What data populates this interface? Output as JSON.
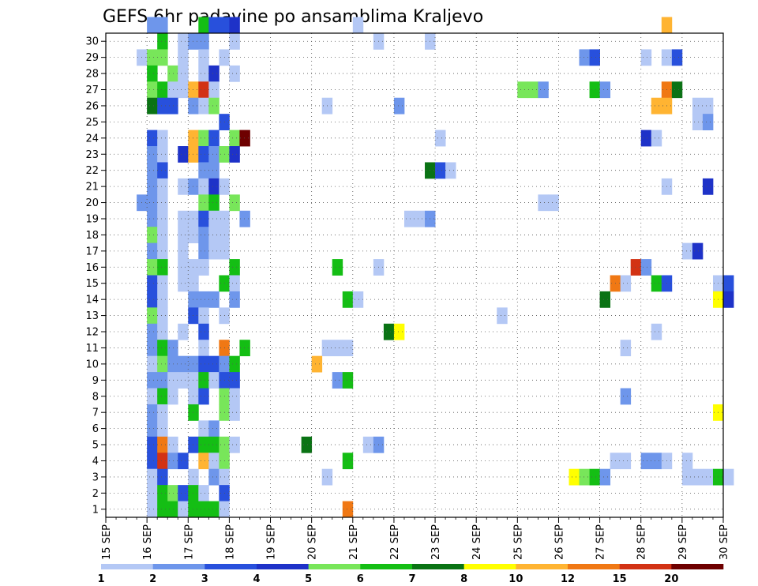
{
  "chart_data": {
    "type": "heatmap",
    "title": "GEFS 6hr padavine po ansamblima Kraljevo",
    "xlabel": "",
    "ylabel": "",
    "x_tick_labels": [
      "15 SEP",
      "16 SEP",
      "17 SEP",
      "18 SEP",
      "19 SEP",
      "20 SEP",
      "21 SEP",
      "22 SEP",
      "23 SEP",
      "24 SEP",
      "25 SEP",
      "26 SEP",
      "27 SEP",
      "28 SEP",
      "29 SEP",
      "30 SEP"
    ],
    "y_tick_labels": [
      "1",
      "2",
      "3",
      "4",
      "5",
      "6",
      "7",
      "8",
      "9",
      "10",
      "11",
      "12",
      "13",
      "14",
      "15",
      "16",
      "17",
      "18",
      "19",
      "20",
      "21",
      "22",
      "23",
      "24",
      "25",
      "26",
      "27",
      "28",
      "29",
      "30"
    ],
    "ylim": [
      0,
      30
    ],
    "x_steps_per_day": 4,
    "grid": true,
    "legend": {
      "placement": "bottom",
      "labels": [
        "1",
        "2",
        "3",
        "4",
        "5",
        "6",
        "7",
        "8",
        "10",
        "12",
        "15",
        "20"
      ],
      "colors": [
        "#b4c8f5",
        "#6e96eb",
        "#2850dc",
        "#1e32c8",
        "#78e65a",
        "#14be14",
        "#0a7314",
        "#ffff00",
        "#ffb432",
        "#f07814",
        "#d23214",
        "#6e0000"
      ]
    },
    "cells": [
      {
        "m": 30,
        "t": 4,
        "c": 1
      },
      {
        "m": 30,
        "t": 5,
        "c": 1
      },
      {
        "m": 30,
        "t": 9,
        "c": 5
      },
      {
        "m": 30,
        "t": 10,
        "c": 2
      },
      {
        "m": 30,
        "t": 11,
        "c": 2
      },
      {
        "m": 30,
        "t": 12,
        "c": 3
      },
      {
        "m": 30,
        "t": 24,
        "c": 0
      },
      {
        "m": 30,
        "t": 54,
        "c": 8
      },
      {
        "m": 29,
        "t": 5,
        "c": 5
      },
      {
        "m": 29,
        "t": 7,
        "c": 0
      },
      {
        "m": 29,
        "t": 8,
        "c": 1
      },
      {
        "m": 29,
        "t": 9,
        "c": 1
      },
      {
        "m": 29,
        "t": 12,
        "c": 0
      },
      {
        "m": 29,
        "t": 26,
        "c": 0
      },
      {
        "m": 29,
        "t": 31,
        "c": 0
      },
      {
        "m": 28,
        "t": 3,
        "c": 0
      },
      {
        "m": 28,
        "t": 4,
        "c": 4
      },
      {
        "m": 28,
        "t": 5,
        "c": 4
      },
      {
        "m": 28,
        "t": 7,
        "c": 0
      },
      {
        "m": 28,
        "t": 9,
        "c": 0
      },
      {
        "m": 28,
        "t": 11,
        "c": 0
      },
      {
        "m": 28,
        "t": 46,
        "c": 1
      },
      {
        "m": 28,
        "t": 47,
        "c": 2
      },
      {
        "m": 28,
        "t": 52,
        "c": 0
      },
      {
        "m": 28,
        "t": 54,
        "c": 0
      },
      {
        "m": 28,
        "t": 55,
        "c": 2
      },
      {
        "m": 27,
        "t": 4,
        "c": 5
      },
      {
        "m": 27,
        "t": 6,
        "c": 4
      },
      {
        "m": 27,
        "t": 7,
        "c": 0
      },
      {
        "m": 27,
        "t": 9,
        "c": 0
      },
      {
        "m": 27,
        "t": 10,
        "c": 3
      },
      {
        "m": 27,
        "t": 12,
        "c": 0
      },
      {
        "m": 26,
        "t": 4,
        "c": 4
      },
      {
        "m": 26,
        "t": 5,
        "c": 5
      },
      {
        "m": 26,
        "t": 6,
        "c": 0
      },
      {
        "m": 26,
        "t": 7,
        "c": 0
      },
      {
        "m": 26,
        "t": 8,
        "c": 8
      },
      {
        "m": 26,
        "t": 9,
        "c": 10
      },
      {
        "m": 26,
        "t": 10,
        "c": 0
      },
      {
        "m": 26,
        "t": 40,
        "c": 4
      },
      {
        "m": 26,
        "t": 41,
        "c": 4
      },
      {
        "m": 26,
        "t": 42,
        "c": 1
      },
      {
        "m": 26,
        "t": 47,
        "c": 5
      },
      {
        "m": 26,
        "t": 48,
        "c": 1
      },
      {
        "m": 26,
        "t": 54,
        "c": 9
      },
      {
        "m": 26,
        "t": 55,
        "c": 6
      },
      {
        "m": 25,
        "t": 4,
        "c": 6
      },
      {
        "m": 25,
        "t": 5,
        "c": 2
      },
      {
        "m": 25,
        "t": 6,
        "c": 2
      },
      {
        "m": 25,
        "t": 8,
        "c": 1
      },
      {
        "m": 25,
        "t": 9,
        "c": 0
      },
      {
        "m": 25,
        "t": 10,
        "c": 4
      },
      {
        "m": 25,
        "t": 21,
        "c": 0
      },
      {
        "m": 25,
        "t": 28,
        "c": 1
      },
      {
        "m": 25,
        "t": 53,
        "c": 8
      },
      {
        "m": 25,
        "t": 54,
        "c": 8
      },
      {
        "m": 25,
        "t": 57,
        "c": 0
      },
      {
        "m": 25,
        "t": 58,
        "c": 0
      },
      {
        "m": 24,
        "t": 11,
        "c": 2
      },
      {
        "m": 24,
        "t": 57,
        "c": 0
      },
      {
        "m": 24,
        "t": 58,
        "c": 1
      },
      {
        "m": 23,
        "t": 4,
        "c": 2
      },
      {
        "m": 23,
        "t": 5,
        "c": 0
      },
      {
        "m": 23,
        "t": 8,
        "c": 8
      },
      {
        "m": 23,
        "t": 9,
        "c": 4
      },
      {
        "m": 23,
        "t": 10,
        "c": 2
      },
      {
        "m": 23,
        "t": 12,
        "c": 4
      },
      {
        "m": 23,
        "t": 13,
        "c": 11
      },
      {
        "m": 23,
        "t": 32,
        "c": 0
      },
      {
        "m": 23,
        "t": 52,
        "c": 3
      },
      {
        "m": 23,
        "t": 53,
        "c": 0
      },
      {
        "m": 22,
        "t": 4,
        "c": 1
      },
      {
        "m": 22,
        "t": 5,
        "c": 0
      },
      {
        "m": 22,
        "t": 7,
        "c": 3
      },
      {
        "m": 22,
        "t": 8,
        "c": 8
      },
      {
        "m": 22,
        "t": 9,
        "c": 2
      },
      {
        "m": 22,
        "t": 10,
        "c": 1
      },
      {
        "m": 22,
        "t": 11,
        "c": 4
      },
      {
        "m": 22,
        "t": 12,
        "c": 3
      },
      {
        "m": 21,
        "t": 4,
        "c": 1
      },
      {
        "m": 21,
        "t": 5,
        "c": 2
      },
      {
        "m": 21,
        "t": 9,
        "c": 1
      },
      {
        "m": 21,
        "t": 10,
        "c": 1
      },
      {
        "m": 21,
        "t": 31,
        "c": 6
      },
      {
        "m": 21,
        "t": 32,
        "c": 2
      },
      {
        "m": 21,
        "t": 33,
        "c": 0
      },
      {
        "m": 20,
        "t": 4,
        "c": 1
      },
      {
        "m": 20,
        "t": 5,
        "c": 0
      },
      {
        "m": 20,
        "t": 7,
        "c": 0
      },
      {
        "m": 20,
        "t": 8,
        "c": 1
      },
      {
        "m": 20,
        "t": 9,
        "c": 0
      },
      {
        "m": 20,
        "t": 10,
        "c": 3
      },
      {
        "m": 20,
        "t": 11,
        "c": 0
      },
      {
        "m": 20,
        "t": 54,
        "c": 0
      },
      {
        "m": 20,
        "t": 58,
        "c": 3
      },
      {
        "m": 19,
        "t": 3,
        "c": 1
      },
      {
        "m": 19,
        "t": 4,
        "c": 1
      },
      {
        "m": 19,
        "t": 5,
        "c": 0
      },
      {
        "m": 19,
        "t": 9,
        "c": 4
      },
      {
        "m": 19,
        "t": 10,
        "c": 5
      },
      {
        "m": 19,
        "t": 12,
        "c": 4
      },
      {
        "m": 19,
        "t": 42,
        "c": 0
      },
      {
        "m": 19,
        "t": 43,
        "c": 0
      },
      {
        "m": 18,
        "t": 4,
        "c": 1
      },
      {
        "m": 18,
        "t": 5,
        "c": 0
      },
      {
        "m": 18,
        "t": 7,
        "c": 0
      },
      {
        "m": 18,
        "t": 8,
        "c": 0
      },
      {
        "m": 18,
        "t": 9,
        "c": 2
      },
      {
        "m": 18,
        "t": 10,
        "c": 0
      },
      {
        "m": 18,
        "t": 11,
        "c": 0
      },
      {
        "m": 18,
        "t": 13,
        "c": 1
      },
      {
        "m": 18,
        "t": 29,
        "c": 0
      },
      {
        "m": 18,
        "t": 30,
        "c": 0
      },
      {
        "m": 18,
        "t": 31,
        "c": 1
      },
      {
        "m": 17,
        "t": 4,
        "c": 4
      },
      {
        "m": 17,
        "t": 5,
        "c": 0
      },
      {
        "m": 17,
        "t": 7,
        "c": 0
      },
      {
        "m": 17,
        "t": 8,
        "c": 0
      },
      {
        "m": 17,
        "t": 9,
        "c": 1
      },
      {
        "m": 17,
        "t": 10,
        "c": 0
      },
      {
        "m": 17,
        "t": 11,
        "c": 0
      },
      {
        "m": 16,
        "t": 4,
        "c": 1
      },
      {
        "m": 16,
        "t": 5,
        "c": 0
      },
      {
        "m": 16,
        "t": 7,
        "c": 0
      },
      {
        "m": 16,
        "t": 9,
        "c": 1
      },
      {
        "m": 16,
        "t": 10,
        "c": 0
      },
      {
        "m": 16,
        "t": 11,
        "c": 0
      },
      {
        "m": 16,
        "t": 56,
        "c": 0
      },
      {
        "m": 16,
        "t": 57,
        "c": 3
      },
      {
        "m": 15,
        "t": 4,
        "c": 4
      },
      {
        "m": 15,
        "t": 5,
        "c": 5
      },
      {
        "m": 15,
        "t": 7,
        "c": 0
      },
      {
        "m": 15,
        "t": 8,
        "c": 0
      },
      {
        "m": 15,
        "t": 9,
        "c": 0
      },
      {
        "m": 15,
        "t": 12,
        "c": 5
      },
      {
        "m": 15,
        "t": 22,
        "c": 5
      },
      {
        "m": 15,
        "t": 26,
        "c": 0
      },
      {
        "m": 15,
        "t": 51,
        "c": 10
      },
      {
        "m": 15,
        "t": 52,
        "c": 1
      },
      {
        "m": 14,
        "t": 4,
        "c": 2
      },
      {
        "m": 14,
        "t": 5,
        "c": 0
      },
      {
        "m": 14,
        "t": 7,
        "c": 0
      },
      {
        "m": 14,
        "t": 8,
        "c": 0
      },
      {
        "m": 14,
        "t": 11,
        "c": 5
      },
      {
        "m": 14,
        "t": 12,
        "c": 0
      },
      {
        "m": 14,
        "t": 49,
        "c": 9
      },
      {
        "m": 14,
        "t": 50,
        "c": 0
      },
      {
        "m": 14,
        "t": 53,
        "c": 5
      },
      {
        "m": 14,
        "t": 54,
        "c": 2
      },
      {
        "m": 14,
        "t": 59,
        "c": 0
      },
      {
        "m": 14,
        "t": 60,
        "c": 2
      },
      {
        "m": 13,
        "t": 4,
        "c": 2
      },
      {
        "m": 13,
        "t": 5,
        "c": 0
      },
      {
        "m": 13,
        "t": 8,
        "c": 1
      },
      {
        "m": 13,
        "t": 9,
        "c": 1
      },
      {
        "m": 13,
        "t": 10,
        "c": 1
      },
      {
        "m": 13,
        "t": 12,
        "c": 1
      },
      {
        "m": 13,
        "t": 23,
        "c": 5
      },
      {
        "m": 13,
        "t": 24,
        "c": 0
      },
      {
        "m": 13,
        "t": 48,
        "c": 6
      },
      {
        "m": 13,
        "t": 59,
        "c": 7
      },
      {
        "m": 13,
        "t": 60,
        "c": 3
      },
      {
        "m": 12,
        "t": 4,
        "c": 4
      },
      {
        "m": 12,
        "t": 5,
        "c": 0
      },
      {
        "m": 12,
        "t": 8,
        "c": 2
      },
      {
        "m": 12,
        "t": 9,
        "c": 0
      },
      {
        "m": 12,
        "t": 11,
        "c": 0
      },
      {
        "m": 12,
        "t": 38,
        "c": 0
      },
      {
        "m": 11,
        "t": 4,
        "c": 1
      },
      {
        "m": 11,
        "t": 5,
        "c": 0
      },
      {
        "m": 11,
        "t": 7,
        "c": 0
      },
      {
        "m": 11,
        "t": 9,
        "c": 2
      },
      {
        "m": 11,
        "t": 27,
        "c": 6
      },
      {
        "m": 11,
        "t": 28,
        "c": 7
      },
      {
        "m": 11,
        "t": 53,
        "c": 0
      },
      {
        "m": 10,
        "t": 4,
        "c": 1
      },
      {
        "m": 10,
        "t": 5,
        "c": 5
      },
      {
        "m": 10,
        "t": 6,
        "c": 1
      },
      {
        "m": 10,
        "t": 9,
        "c": 0
      },
      {
        "m": 10,
        "t": 11,
        "c": 9
      },
      {
        "m": 10,
        "t": 13,
        "c": 5
      },
      {
        "m": 10,
        "t": 21,
        "c": 0
      },
      {
        "m": 10,
        "t": 22,
        "c": 0
      },
      {
        "m": 10,
        "t": 23,
        "c": 0
      },
      {
        "m": 10,
        "t": 50,
        "c": 0
      },
      {
        "m": 9,
        "t": 4,
        "c": 0
      },
      {
        "m": 9,
        "t": 5,
        "c": 4
      },
      {
        "m": 9,
        "t": 6,
        "c": 1
      },
      {
        "m": 9,
        "t": 7,
        "c": 1
      },
      {
        "m": 9,
        "t": 8,
        "c": 1
      },
      {
        "m": 9,
        "t": 9,
        "c": 2
      },
      {
        "m": 9,
        "t": 10,
        "c": 2
      },
      {
        "m": 9,
        "t": 11,
        "c": 1
      },
      {
        "m": 9,
        "t": 12,
        "c": 5
      },
      {
        "m": 9,
        "t": 20,
        "c": 8
      },
      {
        "m": 8,
        "t": 4,
        "c": 1
      },
      {
        "m": 8,
        "t": 5,
        "c": 1
      },
      {
        "m": 8,
        "t": 6,
        "c": 0
      },
      {
        "m": 8,
        "t": 7,
        "c": 0
      },
      {
        "m": 8,
        "t": 8,
        "c": 0
      },
      {
        "m": 8,
        "t": 9,
        "c": 5
      },
      {
        "m": 8,
        "t": 10,
        "c": 0
      },
      {
        "m": 8,
        "t": 11,
        "c": 2
      },
      {
        "m": 8,
        "t": 12,
        "c": 2
      },
      {
        "m": 8,
        "t": 22,
        "c": 1
      },
      {
        "m": 8,
        "t": 23,
        "c": 5
      },
      {
        "m": 7,
        "t": 4,
        "c": 0
      },
      {
        "m": 7,
        "t": 5,
        "c": 5
      },
      {
        "m": 7,
        "t": 6,
        "c": 0
      },
      {
        "m": 7,
        "t": 8,
        "c": 0
      },
      {
        "m": 7,
        "t": 9,
        "c": 2
      },
      {
        "m": 7,
        "t": 11,
        "c": 4
      },
      {
        "m": 7,
        "t": 12,
        "c": 0
      },
      {
        "m": 7,
        "t": 50,
        "c": 1
      },
      {
        "m": 6,
        "t": 4,
        "c": 1
      },
      {
        "m": 6,
        "t": 5,
        "c": 0
      },
      {
        "m": 6,
        "t": 8,
        "c": 5
      },
      {
        "m": 6,
        "t": 11,
        "c": 4
      },
      {
        "m": 6,
        "t": 12,
        "c": 0
      },
      {
        "m": 6,
        "t": 59,
        "c": 7
      },
      {
        "m": 5,
        "t": 4,
        "c": 1
      },
      {
        "m": 5,
        "t": 5,
        "c": 0
      },
      {
        "m": 5,
        "t": 9,
        "c": 0
      },
      {
        "m": 5,
        "t": 10,
        "c": 1
      },
      {
        "m": 4,
        "t": 4,
        "c": 2
      },
      {
        "m": 4,
        "t": 5,
        "c": 9
      },
      {
        "m": 4,
        "t": 6,
        "c": 0
      },
      {
        "m": 4,
        "t": 8,
        "c": 2
      },
      {
        "m": 4,
        "t": 9,
        "c": 5
      },
      {
        "m": 4,
        "t": 10,
        "c": 5
      },
      {
        "m": 4,
        "t": 11,
        "c": 4
      },
      {
        "m": 4,
        "t": 12,
        "c": 0
      },
      {
        "m": 4,
        "t": 19,
        "c": 6
      },
      {
        "m": 4,
        "t": 25,
        "c": 0
      },
      {
        "m": 4,
        "t": 26,
        "c": 1
      },
      {
        "m": 3,
        "t": 4,
        "c": 2
      },
      {
        "m": 3,
        "t": 5,
        "c": 10
      },
      {
        "m": 3,
        "t": 6,
        "c": 1
      },
      {
        "m": 3,
        "t": 7,
        "c": 2
      },
      {
        "m": 3,
        "t": 9,
        "c": 8
      },
      {
        "m": 3,
        "t": 10,
        "c": 0
      },
      {
        "m": 3,
        "t": 11,
        "c": 4
      },
      {
        "m": 3,
        "t": 23,
        "c": 5
      },
      {
        "m": 3,
        "t": 49,
        "c": 0
      },
      {
        "m": 3,
        "t": 50,
        "c": 0
      },
      {
        "m": 3,
        "t": 52,
        "c": 1
      },
      {
        "m": 3,
        "t": 53,
        "c": 1
      },
      {
        "m": 3,
        "t": 54,
        "c": 0
      },
      {
        "m": 3,
        "t": 56,
        "c": 0
      },
      {
        "m": 2,
        "t": 4,
        "c": 0
      },
      {
        "m": 2,
        "t": 5,
        "c": 2
      },
      {
        "m": 2,
        "t": 8,
        "c": 0
      },
      {
        "m": 2,
        "t": 10,
        "c": 1
      },
      {
        "m": 2,
        "t": 11,
        "c": 0
      },
      {
        "m": 2,
        "t": 21,
        "c": 0
      },
      {
        "m": 2,
        "t": 45,
        "c": 7
      },
      {
        "m": 2,
        "t": 46,
        "c": 4
      },
      {
        "m": 2,
        "t": 47,
        "c": 5
      },
      {
        "m": 2,
        "t": 48,
        "c": 1
      },
      {
        "m": 2,
        "t": 56,
        "c": 0
      },
      {
        "m": 2,
        "t": 57,
        "c": 0
      },
      {
        "m": 2,
        "t": 58,
        "c": 0
      },
      {
        "m": 2,
        "t": 59,
        "c": 5
      },
      {
        "m": 2,
        "t": 60,
        "c": 0
      },
      {
        "m": 1,
        "t": 4,
        "c": 0
      },
      {
        "m": 1,
        "t": 5,
        "c": 5
      },
      {
        "m": 1,
        "t": 6,
        "c": 4
      },
      {
        "m": 1,
        "t": 7,
        "c": 2
      },
      {
        "m": 1,
        "t": 8,
        "c": 5
      },
      {
        "m": 1,
        "t": 9,
        "c": 0
      },
      {
        "m": 1,
        "t": 11,
        "c": 2
      },
      {
        "m": 0,
        "t": 4,
        "c": 0
      },
      {
        "m": 0,
        "t": 5,
        "c": 5
      },
      {
        "m": 0,
        "t": 6,
        "c": 5
      },
      {
        "m": 0,
        "t": 7,
        "c": 0
      },
      {
        "m": 0,
        "t": 8,
        "c": 5
      },
      {
        "m": 0,
        "t": 9,
        "c": 5
      },
      {
        "m": 0,
        "t": 10,
        "c": 5
      },
      {
        "m": 0,
        "t": 11,
        "c": 0
      },
      {
        "m": 0,
        "t": 23,
        "c": 9
      }
    ]
  }
}
